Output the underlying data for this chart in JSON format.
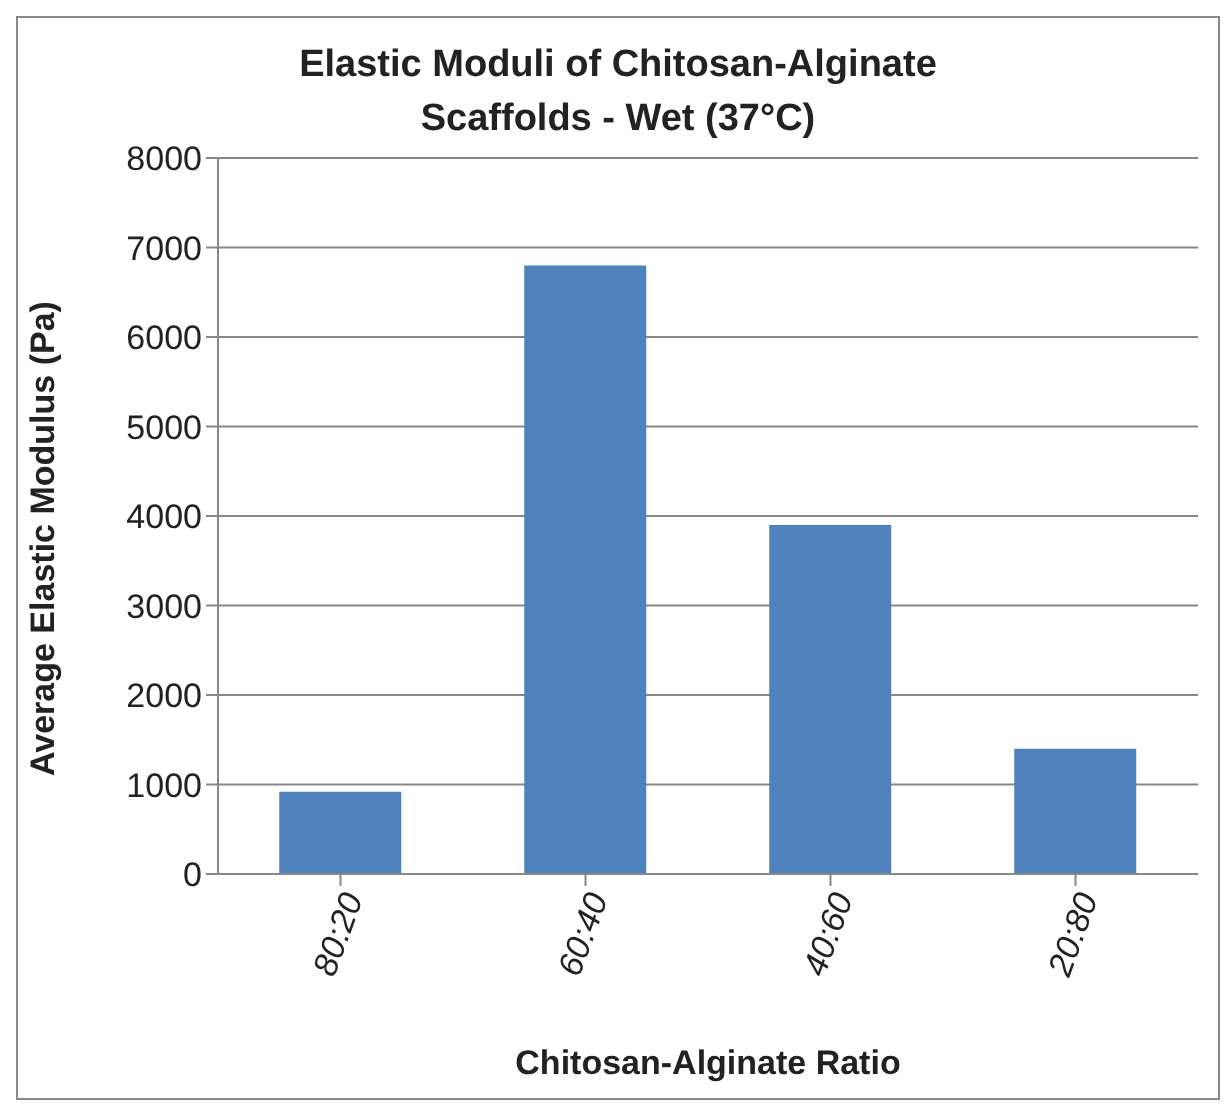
{
  "chart_data": {
    "type": "bar",
    "title": "Elastic Moduli of Chitosan-Alginate Scaffolds - Wet (37°C)",
    "xlabel": "Chitosan-Alginate Ratio",
    "ylabel": "Average Elastic Modulus (Pa)",
    "categories": [
      "80:20",
      "60:40",
      "40:60",
      "20:80"
    ],
    "values": [
      920,
      6800,
      3900,
      1400
    ],
    "color": "#4f81bd",
    "ylim": [
      0,
      8000
    ],
    "yticks": [
      0,
      1000,
      2000,
      3000,
      4000,
      5000,
      6000,
      7000,
      8000
    ],
    "grid": "y"
  }
}
